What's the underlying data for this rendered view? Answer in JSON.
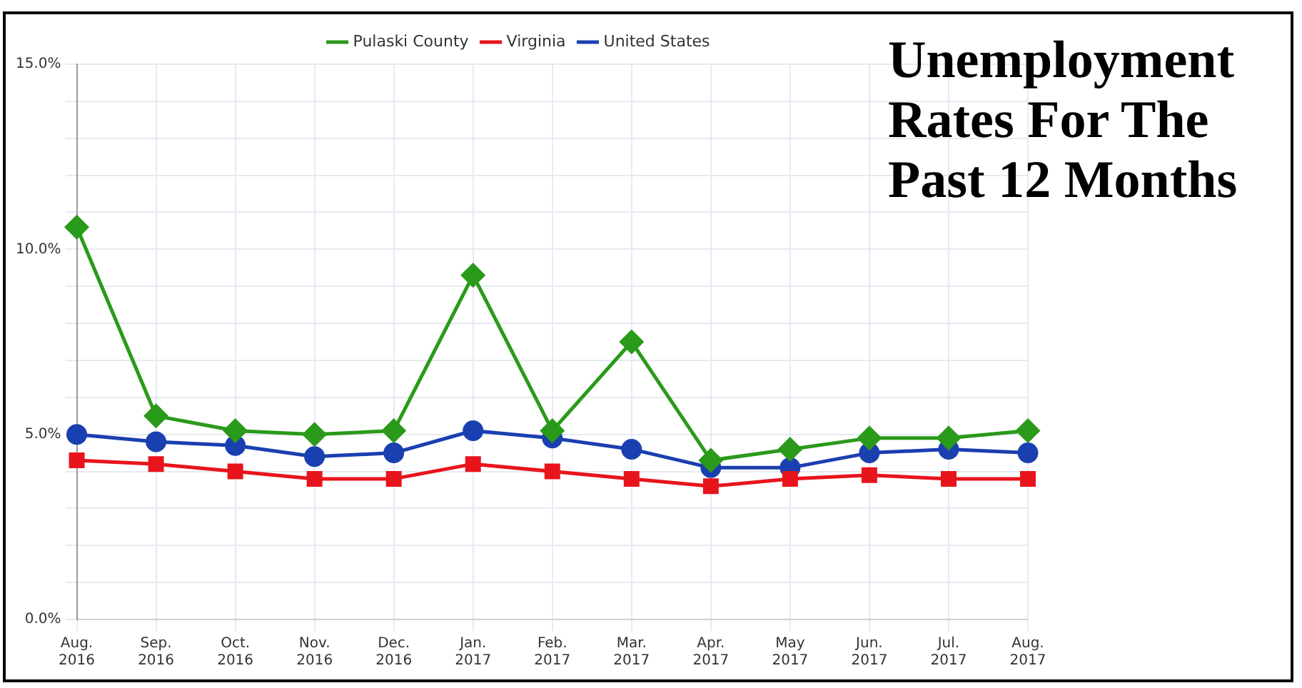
{
  "chart_data": {
    "type": "line",
    "title": "Unemployment Rates For The Past 12 Months",
    "categories": [
      "Aug. 2016",
      "Sep. 2016",
      "Oct. 2016",
      "Nov. 2016",
      "Dec. 2016",
      "Jan. 2017",
      "Feb. 2017",
      "Mar. 2017",
      "Apr. 2017",
      "May 2017",
      "Jun. 2017",
      "Jul. 2017",
      "Aug. 2017"
    ],
    "series": [
      {
        "name": "Pulaski County",
        "color": "#2a9a1a",
        "marker": "diamond",
        "values": [
          10.6,
          5.5,
          5.1,
          5.0,
          5.1,
          9.3,
          5.1,
          7.5,
          4.3,
          4.6,
          4.9,
          4.9,
          5.1
        ]
      },
      {
        "name": "Virginia",
        "color": "#e8141c",
        "marker": "square",
        "values": [
          4.3,
          4.2,
          4.0,
          3.8,
          3.8,
          4.2,
          4.0,
          3.8,
          3.6,
          3.8,
          3.9,
          3.8,
          3.8
        ]
      },
      {
        "name": "United States",
        "color": "#1a3fb0",
        "marker": "circle",
        "values": [
          5.0,
          4.8,
          4.7,
          4.4,
          4.5,
          5.1,
          4.9,
          4.6,
          4.1,
          4.1,
          4.5,
          4.6,
          4.5
        ]
      }
    ],
    "ylim": [
      0,
      15
    ],
    "yticks": [
      {
        "value": 0,
        "label": "0.0%"
      },
      {
        "value": 1,
        "label": null
      },
      {
        "value": 2,
        "label": null
      },
      {
        "value": 3,
        "label": null
      },
      {
        "value": 4,
        "label": null
      },
      {
        "value": 5,
        "label": "5.0%"
      },
      {
        "value": 6,
        "label": null
      },
      {
        "value": 7,
        "label": null
      },
      {
        "value": 8,
        "label": null
      },
      {
        "value": 9,
        "label": null
      },
      {
        "value": 10,
        "label": "10.0%"
      },
      {
        "value": 11,
        "label": null
      },
      {
        "value": 12,
        "label": null
      },
      {
        "value": 13,
        "label": null
      },
      {
        "value": 14,
        "label": null
      },
      {
        "value": 15,
        "label": "15.0%"
      }
    ],
    "grid": true,
    "legend": "top",
    "line_style": "solid"
  }
}
